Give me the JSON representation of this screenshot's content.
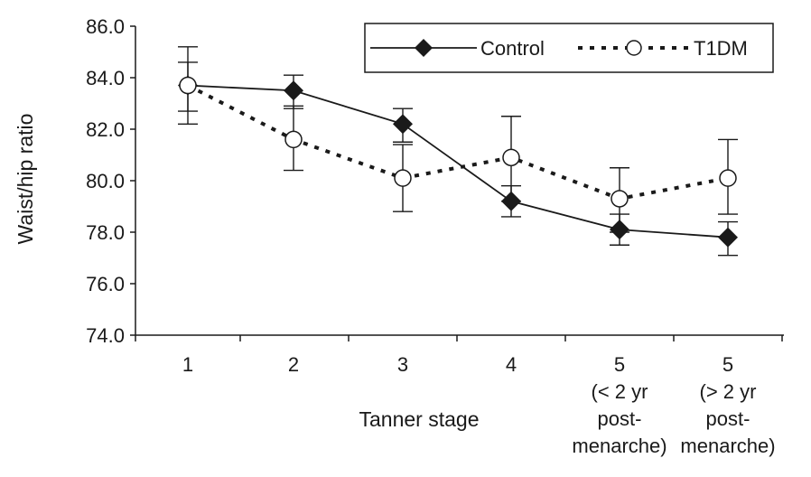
{
  "chart_data": {
    "type": "line",
    "title": "",
    "xlabel": "Tanner stage",
    "ylabel": "Waist/hip ratio",
    "ylim": [
      74.0,
      86.0
    ],
    "y_ticks": [
      "74.0",
      "76.0",
      "78.0",
      "80.0",
      "82.0",
      "84.0",
      "86.0"
    ],
    "categories": [
      [
        "1"
      ],
      [
        "2"
      ],
      [
        "3"
      ],
      [
        "4"
      ],
      [
        "5",
        "(< 2 yr",
        "post-",
        "menarche)"
      ],
      [
        "5",
        "(> 2 yr",
        "post-",
        "menarche)"
      ]
    ],
    "grid": false,
    "legend_position": "top-right",
    "series": [
      {
        "name": "Control",
        "marker": "filled-diamond",
        "line": "solid",
        "values": [
          83.7,
          83.5,
          82.2,
          79.2,
          78.1,
          77.8
        ],
        "error_low": [
          82.7,
          82.8,
          81.5,
          78.6,
          77.5,
          77.1
        ],
        "error_high": [
          84.6,
          84.1,
          82.8,
          79.8,
          78.7,
          78.4
        ]
      },
      {
        "name": "T1DM",
        "marker": "open-circle",
        "line": "dotted",
        "values": [
          83.7,
          81.6,
          80.1,
          80.9,
          79.3,
          80.1
        ],
        "error_low": [
          82.2,
          80.4,
          78.8,
          79.2,
          78.0,
          78.7
        ],
        "error_high": [
          85.2,
          82.9,
          81.4,
          82.5,
          80.5,
          81.6
        ]
      }
    ]
  }
}
